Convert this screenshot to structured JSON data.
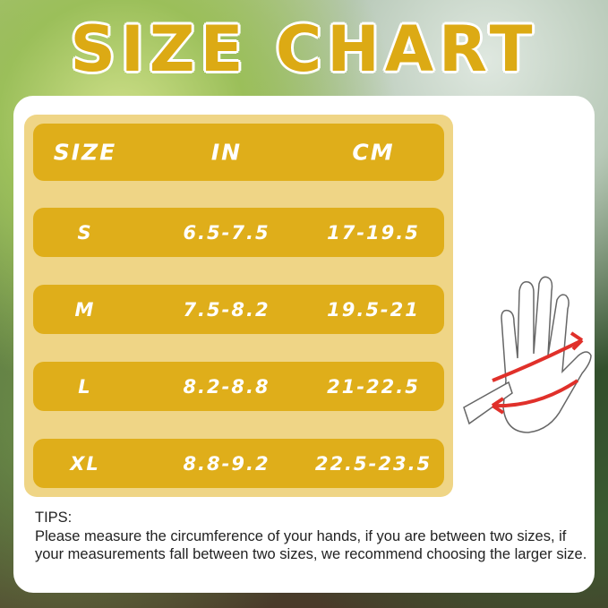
{
  "title": "SIZE CHART",
  "table": {
    "headers": [
      "SIZE",
      "IN",
      "CM"
    ],
    "rows": [
      [
        "S",
        "6.5-7.5",
        "17-19.5"
      ],
      [
        "M",
        "7.5-8.2",
        "19.5-21"
      ],
      [
        "L",
        "8.2-8.8",
        "21-22.5"
      ],
      [
        "XL",
        "8.8-9.2",
        "22.5-23.5"
      ]
    ]
  },
  "tips": {
    "label": "TIPS:",
    "text": "Please measure the circumference of your hands, if you are between two sizes,  if your measurements fall between two sizes, we recommend choosing the larger size."
  },
  "colors": {
    "accent": "#dfae1a",
    "table_bg": "#efd586",
    "arrow": "#e0302a"
  }
}
